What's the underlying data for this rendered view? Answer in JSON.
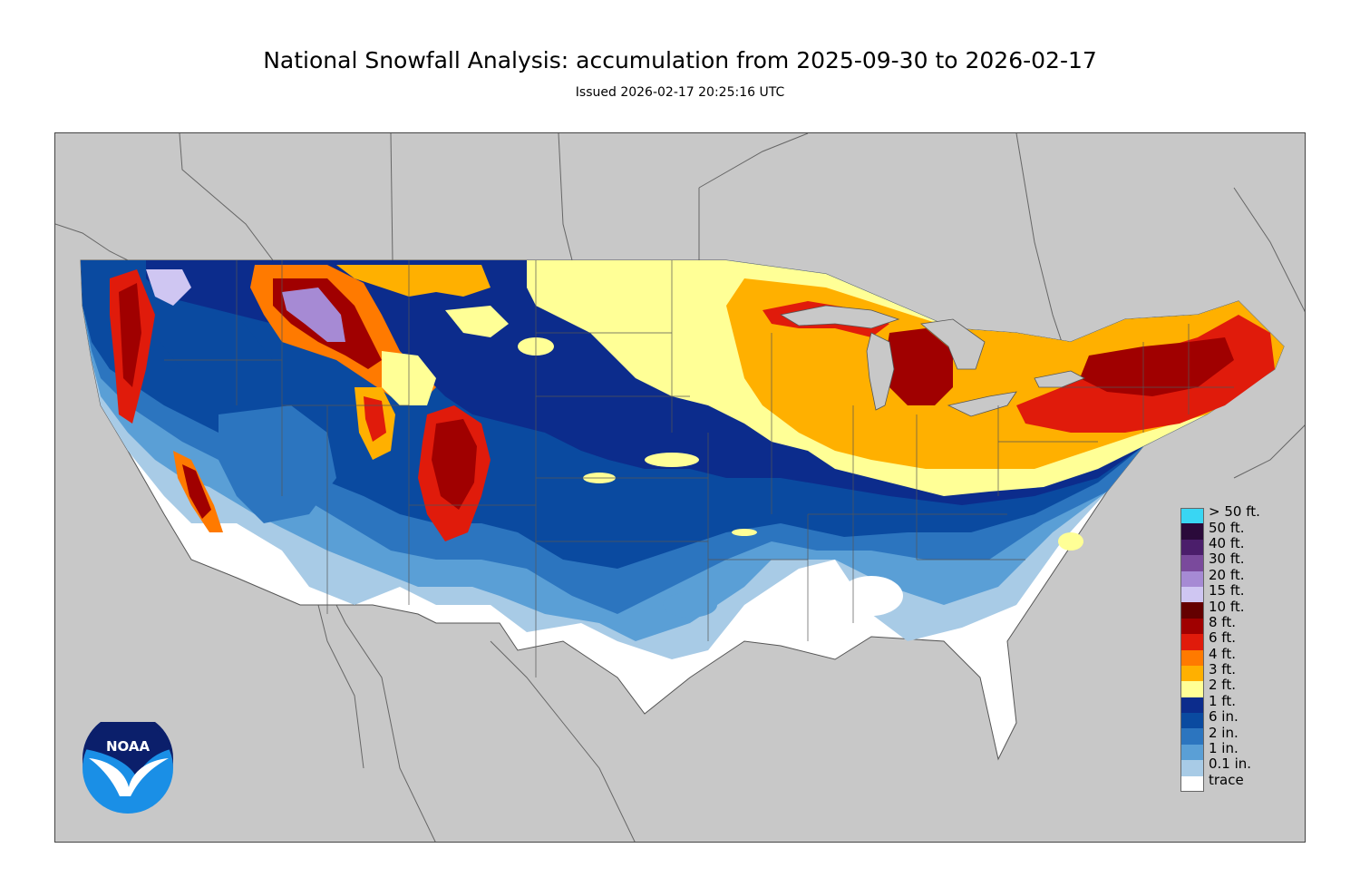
{
  "title": "National Snowfall Analysis: accumulation from 2025-09-30 to 2026-02-17",
  "subtitle": "Issued 2026-02-17 20:25:16 UTC",
  "logo": {
    "text": "NOAA",
    "icon": "noaa-seagull-logo"
  },
  "colors": {
    "background_land": "#c8c8c8",
    "state_border": "#555555"
  },
  "legend": [
    {
      "label": "> 50 ft.",
      "color": "#39d6f3"
    },
    {
      "label": "50 ft.",
      "color": "#2a0a3a"
    },
    {
      "label": "40 ft.",
      "color": "#4b1e6b"
    },
    {
      "label": "30 ft.",
      "color": "#7a4a9c"
    },
    {
      "label": "20 ft.",
      "color": "#a68ad4"
    },
    {
      "label": "15 ft.",
      "color": "#cfc6f2"
    },
    {
      "label": "10 ft.",
      "color": "#640000"
    },
    {
      "label": "8 ft.",
      "color": "#a00000"
    },
    {
      "label": "6 ft.",
      "color": "#e01b0b"
    },
    {
      "label": "4 ft.",
      "color": "#ff7a00"
    },
    {
      "label": "3 ft.",
      "color": "#ffb000"
    },
    {
      "label": "2 ft.",
      "color": "#ffff96"
    },
    {
      "label": "1 ft.",
      "color": "#0c2c8c"
    },
    {
      "label": "6 in.",
      "color": "#0a4aa0"
    },
    {
      "label": "2 in.",
      "color": "#2c75bf"
    },
    {
      "label": "1 in.",
      "color": "#5a9fd6"
    },
    {
      "label": "0.1 in.",
      "color": "#a8cbe6"
    },
    {
      "label": "trace",
      "color": "#ffffff"
    }
  ]
}
